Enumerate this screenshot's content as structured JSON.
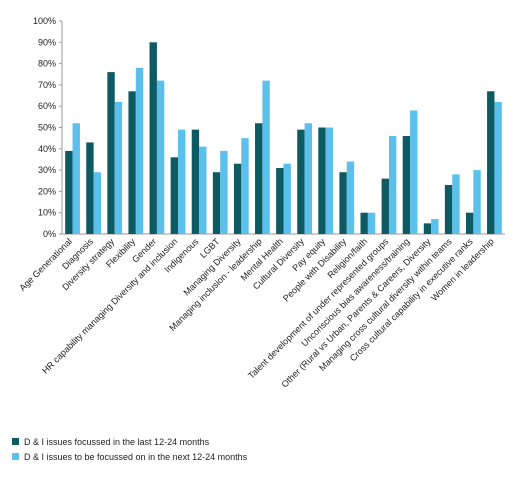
{
  "chart_data": {
    "type": "bar",
    "categories": [
      "Age Generational",
      "Diagnosis",
      "Diversity strategy",
      "Flexibility",
      "Gender",
      "HR capability managing Diversity and inclusion",
      "Indigenous",
      "LGBT",
      "Managing Diversity",
      "Managing inclusion - leadership",
      "Mental Health",
      "Cultural Diversity",
      "Pay equity",
      "People with Disability",
      "Religion/faith",
      "Talent development of under represented groups",
      "Unconscious bias awareness/training",
      "Other (Rural vs Urban, Parents & Careers, Diversity",
      "Managing cross cultural diversity within teams",
      "Cross cultural capability in executive ranks",
      "Women in leadership"
    ],
    "series": [
      {
        "name": "D & I issues focussed in the last 12-24 months",
        "color": "#0d5a63",
        "values": [
          39,
          43,
          76,
          67,
          90,
          36,
          49,
          29,
          33,
          52,
          31,
          49,
          50,
          29,
          10,
          26,
          46,
          5,
          23,
          10,
          67
        ]
      },
      {
        "name": "D & I issues to be focussed on in the next 12-24 months",
        "color": "#5bc0eb",
        "values": [
          52,
          29,
          62,
          78,
          72,
          49,
          41,
          39,
          45,
          72,
          33,
          52,
          50,
          34,
          10,
          46,
          58,
          7,
          28,
          30,
          62
        ]
      }
    ],
    "ylim": [
      0,
      100
    ],
    "yticks": [
      {
        "value": 0,
        "label": "0%"
      },
      {
        "value": 10,
        "label": "10%"
      },
      {
        "value": 20,
        "label": "20%"
      },
      {
        "value": 30,
        "label": "30%"
      },
      {
        "value": 40,
        "label": "40%"
      },
      {
        "value": 50,
        "label": "50%"
      },
      {
        "value": 60,
        "label": "60%"
      },
      {
        "value": 70,
        "label": "70%"
      },
      {
        "value": 80,
        "label": "80%"
      },
      {
        "value": 90,
        "label": "90%"
      },
      {
        "value": 100,
        "label": "100%"
      }
    ],
    "legend": "bottom-left"
  }
}
